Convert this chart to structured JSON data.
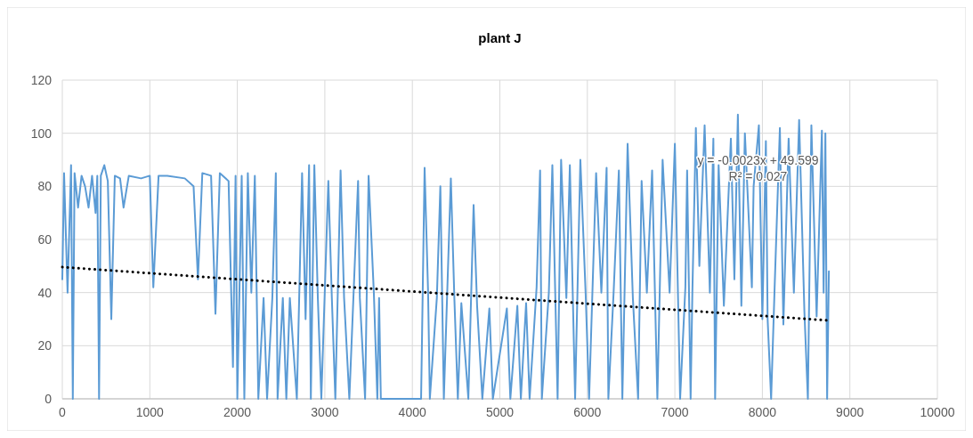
{
  "chart_data": {
    "type": "line",
    "title": "plant J",
    "xlim": [
      0,
      10000
    ],
    "xticks": [
      0,
      1000,
      2000,
      3000,
      4000,
      5000,
      6000,
      7000,
      8000,
      9000,
      10000
    ],
    "ylim": [
      0,
      120
    ],
    "yticks": [
      0,
      20,
      40,
      60,
      80,
      100,
      120
    ],
    "grid": true,
    "marker": "none",
    "series": [
      {
        "color": "#5b9bd5",
        "line_style": "solid",
        "x": [
          0,
          20,
          60,
          100,
          120,
          140,
          180,
          220,
          260,
          300,
          340,
          380,
          400,
          420,
          440,
          480,
          520,
          560,
          600,
          660,
          700,
          760,
          900,
          1000,
          1040,
          1100,
          1200,
          1400,
          1500,
          1550,
          1600,
          1700,
          1750,
          1800,
          1900,
          1950,
          1980,
          2000,
          2050,
          2080,
          2120,
          2160,
          2200,
          2240,
          2300,
          2340,
          2400,
          2440,
          2460,
          2520,
          2560,
          2600,
          2680,
          2740,
          2780,
          2820,
          2840,
          2880,
          2920,
          2960,
          3040,
          3080,
          3120,
          3180,
          3220,
          3280,
          3380,
          3400,
          3460,
          3500,
          3560,
          3600,
          3620,
          3640,
          4100,
          4140,
          4180,
          4200,
          4280,
          4320,
          4360,
          4440,
          4480,
          4520,
          4560,
          4640,
          4700,
          4740,
          4800,
          4880,
          4920,
          5080,
          5120,
          5200,
          5240,
          5300,
          5340,
          5420,
          5460,
          5480,
          5560,
          5600,
          5660,
          5700,
          5760,
          5800,
          5860,
          5920,
          5980,
          6020,
          6100,
          6160,
          6220,
          6240,
          6300,
          6360,
          6400,
          6460,
          6520,
          6580,
          6620,
          6680,
          6740,
          6800,
          6860,
          6940,
          7000,
          7060,
          7120,
          7140,
          7180,
          7200,
          7240,
          7280,
          7340,
          7400,
          7440,
          7460,
          7500,
          7560,
          7640,
          7680,
          7720,
          7760,
          7800,
          7880,
          7900,
          7960,
          8000,
          8040,
          8060,
          8100,
          8140,
          8200,
          8240,
          8300,
          8360,
          8420,
          8480,
          8520,
          8560,
          8620,
          8680,
          8700,
          8720,
          8740,
          8760
        ],
        "values": [
          45,
          85,
          40,
          88,
          0,
          85,
          72,
          84,
          80,
          72,
          84,
          70,
          84,
          0,
          84,
          88,
          82,
          30,
          84,
          83,
          72,
          84,
          83,
          84,
          42,
          84,
          84,
          83,
          80,
          45,
          85,
          84,
          32,
          85,
          82,
          12,
          84,
          0,
          84,
          0,
          85,
          40,
          84,
          0,
          38,
          0,
          38,
          85,
          0,
          38,
          0,
          38,
          0,
          85,
          30,
          88,
          0,
          88,
          38,
          0,
          82,
          38,
          0,
          86,
          38,
          0,
          82,
          38,
          0,
          84,
          40,
          0,
          38,
          0,
          0,
          87,
          40,
          0,
          38,
          80,
          0,
          83,
          38,
          0,
          36,
          0,
          73,
          35,
          0,
          34,
          0,
          34,
          0,
          35,
          0,
          36,
          0,
          42,
          86,
          0,
          40,
          88,
          0,
          90,
          38,
          88,
          0,
          90,
          40,
          0,
          85,
          40,
          87,
          0,
          40,
          86,
          0,
          96,
          38,
          0,
          82,
          40,
          86,
          0,
          90,
          40,
          96,
          0,
          42,
          86,
          0,
          40,
          102,
          50,
          103,
          40,
          98,
          0,
          88,
          35,
          98,
          45,
          107,
          35,
          100,
          42,
          80,
          103,
          30,
          97,
          30,
          0,
          42,
          102,
          28,
          98,
          40,
          105,
          33,
          0,
          103,
          31,
          101,
          40,
          100,
          0,
          48
        ]
      },
      {
        "type": "line",
        "color": "#000000",
        "line_style": "dotted",
        "x": [
          0,
          8760
        ],
        "values": [
          49.6,
          29.5
        ]
      }
    ],
    "annotations": [
      {
        "text": "y = -0.0023x + 49.599",
        "x": 7950,
        "y": 88
      },
      {
        "text": "R² = 0.027",
        "x": 7950,
        "y": 82
      }
    ]
  }
}
